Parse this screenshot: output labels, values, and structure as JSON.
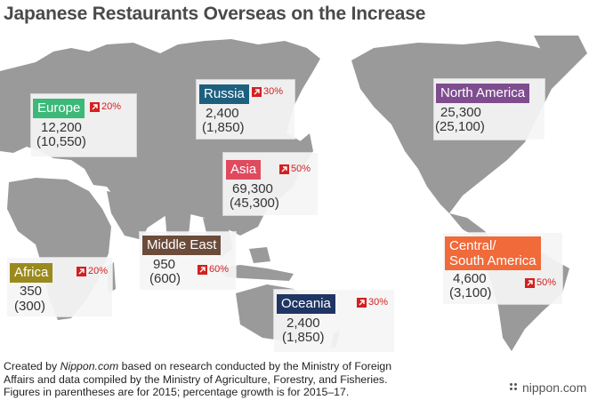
{
  "title": "Japanese Restaurants Overseas on the Increase",
  "regions": [
    {
      "key": "europe",
      "name": "Europe",
      "color": "#3cb878",
      "count": "12,200",
      "prev": "(10,550)",
      "growth": "20%"
    },
    {
      "key": "russia",
      "name": "Russia",
      "color": "#1d5f7e",
      "count": "2,400",
      "prev": "(1,850)",
      "growth": "30%"
    },
    {
      "key": "north_america",
      "name": "North America",
      "color": "#7f4d8f",
      "count": "25,300",
      "prev": "(25,100)",
      "growth": ""
    },
    {
      "key": "asia",
      "name": "Asia",
      "color": "#e04a5f",
      "count": "69,300",
      "prev": "(45,300)",
      "growth": "50%"
    },
    {
      "key": "middle_east",
      "name": "Middle East",
      "color": "#6b4c3a",
      "count": "950",
      "prev": "(600)",
      "growth": "60%"
    },
    {
      "key": "africa",
      "name": "Africa",
      "color": "#9a8a1e",
      "count": "350",
      "prev": "(300)",
      "growth": "20%"
    },
    {
      "key": "oceania",
      "name": "Oceania",
      "color": "#1f3563",
      "count": "2,400",
      "prev": "(1,850)",
      "growth": "30%"
    },
    {
      "key": "central_south_america",
      "name_line1": "Central/",
      "name_line2": "South America",
      "color": "#f06a3a",
      "count": "4,600",
      "prev": "(3,100)",
      "growth": "50%"
    }
  ],
  "footer": {
    "line1_pre": "Created by ",
    "line1_brand": "Nippon.com",
    "line1_post": " based on research conducted by the Ministry of Foreign",
    "line2": "Affairs and data compiled by the Ministry of Agriculture, Forestry, and Fisheries.",
    "line3": "Figures in parentheses are for 2015; percentage growth is for 2015–17."
  },
  "logo_text": "nippon.com",
  "colors": {
    "land": "#9a9a9a",
    "growth_red": "#d42020"
  },
  "growth_icon": "arrow-up-right-icon"
}
